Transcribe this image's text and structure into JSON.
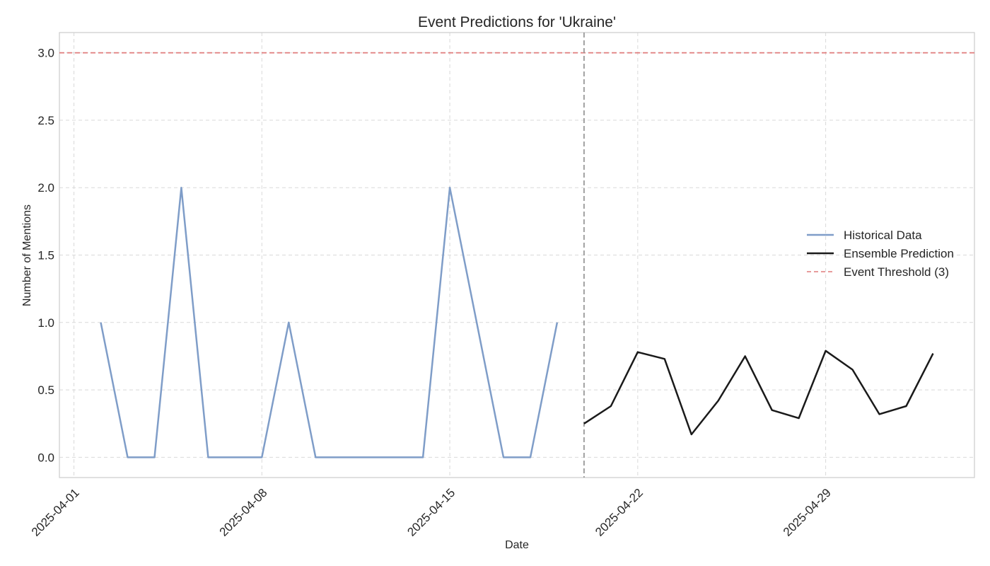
{
  "chart_data": {
    "type": "line",
    "title": "Event Predictions for 'Ukraine'",
    "xlabel": "Date",
    "ylabel": "Number of Mentions",
    "x_range": [
      "2025-03-31T11:00",
      "2025-05-04T13:00"
    ],
    "ylim": [
      -0.15,
      3.15
    ],
    "x_ticks": [
      "2025-04-01",
      "2025-04-08",
      "2025-04-15",
      "2025-04-22",
      "2025-04-29"
    ],
    "y_ticks": [
      "0.0",
      "0.5",
      "1.0",
      "1.5",
      "2.0",
      "2.5",
      "3.0"
    ],
    "grid": true,
    "legend_position": "center-right",
    "prediction_start": "2025-04-20",
    "series": [
      {
        "name": "Historical Data",
        "color": "#7f9dc8",
        "style": "solid",
        "x": [
          "2025-04-02",
          "2025-04-03",
          "2025-04-04",
          "2025-04-05",
          "2025-04-06",
          "2025-04-07",
          "2025-04-08",
          "2025-04-09",
          "2025-04-10",
          "2025-04-11",
          "2025-04-12",
          "2025-04-13",
          "2025-04-14",
          "2025-04-15",
          "2025-04-16",
          "2025-04-17",
          "2025-04-18",
          "2025-04-19"
        ],
        "y": [
          1,
          0,
          0,
          2,
          0,
          0,
          0,
          1,
          0,
          0,
          0,
          0,
          0,
          2,
          1,
          0,
          0,
          1
        ]
      },
      {
        "name": "Ensemble Prediction",
        "color": "#1a1a1a",
        "style": "solid",
        "x": [
          "2025-04-20",
          "2025-04-21",
          "2025-04-22",
          "2025-04-23",
          "2025-04-24",
          "2025-04-25",
          "2025-04-26",
          "2025-04-27",
          "2025-04-28",
          "2025-04-29",
          "2025-04-30",
          "2025-05-01",
          "2025-05-02",
          "2025-05-03"
        ],
        "y": [
          0.25,
          0.38,
          0.78,
          0.73,
          0.17,
          0.42,
          0.75,
          0.35,
          0.29,
          0.79,
          0.65,
          0.32,
          0.38,
          0.77
        ]
      }
    ],
    "threshold": {
      "name": "Event Threshold (3)",
      "value": 3,
      "color": "#e07b7b",
      "style": "dashed"
    },
    "divider_color": "#999999"
  }
}
